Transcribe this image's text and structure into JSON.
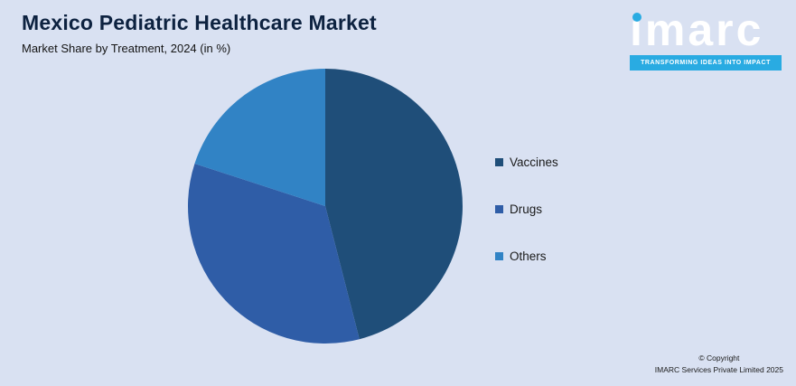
{
  "title": "Mexico Pediatric Healthcare Market",
  "subtitle": "Market Share by Treatment, 2024 (in %)",
  "logo": {
    "text": "imarc",
    "tagline": "TRANSFORMING IDEAS INTO IMPACT"
  },
  "footer": {
    "line1": "© Copyright",
    "line2": "IMARC Services Private Limited 2025"
  },
  "colors": {
    "background": "#D9E1F2",
    "accent_cyan": "#29ABE2",
    "title_text": "#0D2240"
  },
  "chart_data": {
    "type": "pie",
    "title": "Mexico Pediatric Healthcare Market",
    "subtitle": "Market Share by Treatment, 2024 (in %)",
    "categories": [
      "Vaccines",
      "Drugs",
      "Others"
    ],
    "values": [
      46,
      34,
      20
    ],
    "colors": [
      "#1F4E79",
      "#2F5DA7",
      "#3183C5"
    ],
    "legend_position": "right",
    "start_angle_deg": 0,
    "direction": "clockwise",
    "data_labels": false
  }
}
